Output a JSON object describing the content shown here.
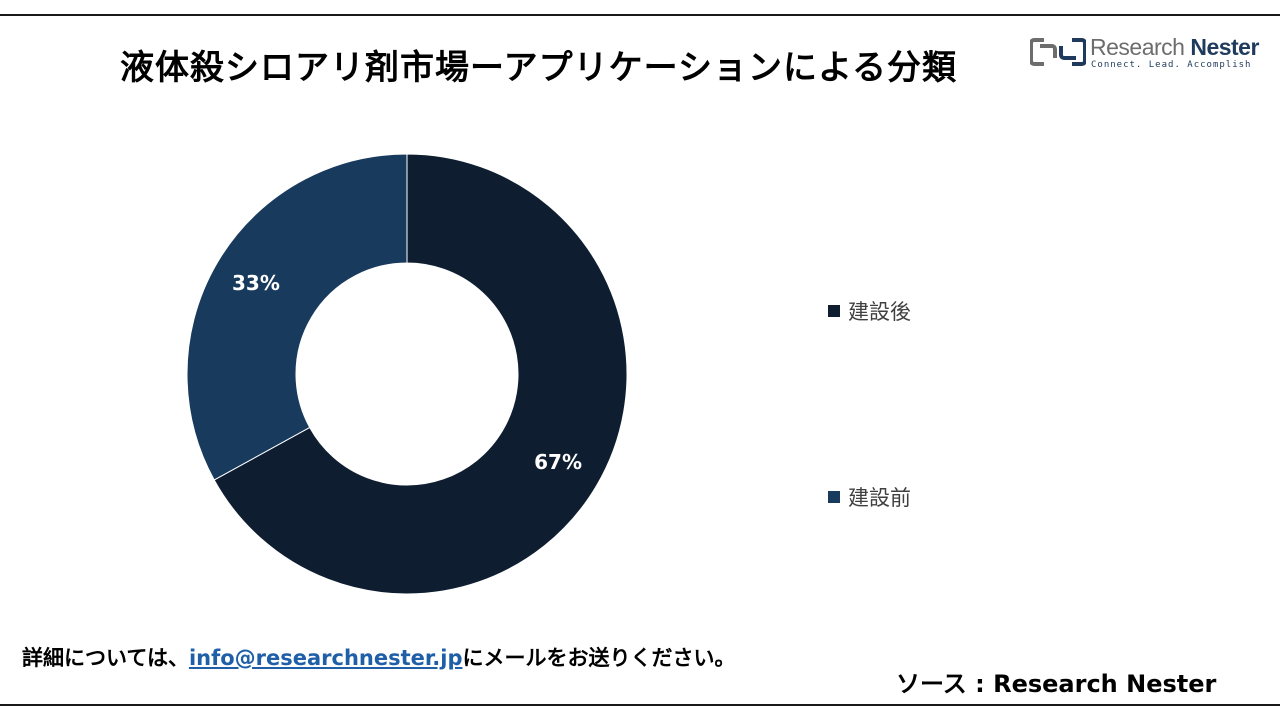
{
  "header": {
    "title": "液体殺シロアリ剤市場ーアプリケーションによる分類"
  },
  "logo": {
    "name_part1": "Research",
    "name_part2": "Nester",
    "tagline": "Connect. Lead. Accomplish"
  },
  "chart_data": {
    "type": "pie",
    "subtype": "donut",
    "title": "液体殺シロアリ剤市場ーアプリケーションによる分類",
    "categories": [
      "建設後",
      "建設前"
    ],
    "values": [
      67,
      33
    ],
    "labels": [
      "67%",
      "33%"
    ],
    "colors": [
      "#0e1e30",
      "#183a5d"
    ],
    "legend_position": "right"
  },
  "footer": {
    "note_prefix": "詳細については、",
    "email": "info@researchnester.jp",
    "note_suffix": "にメールをお送りください。",
    "source": "ソース  : Research Nester"
  }
}
